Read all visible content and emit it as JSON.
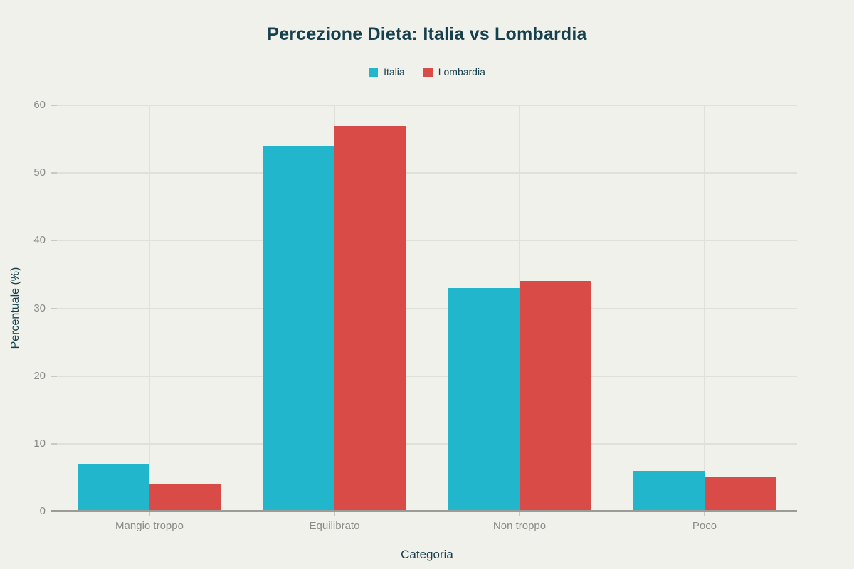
{
  "chart_data": {
    "type": "bar",
    "title": "Percezione Dieta: Italia vs Lombardia",
    "xlabel": "Categoria",
    "ylabel": "Percentuale (%)",
    "categories": [
      "Mangio troppo",
      "Equilibrato",
      "Non troppo",
      "Poco"
    ],
    "series": [
      {
        "name": "Italia",
        "color": "#21b6cc",
        "values": [
          7,
          54,
          33,
          6
        ]
      },
      {
        "name": "Lombardia",
        "color": "#d84b47",
        "values": [
          4,
          57,
          34,
          5
        ]
      }
    ],
    "ylim": [
      0,
      60
    ],
    "yticks": [
      0,
      10,
      20,
      30,
      40,
      50,
      60
    ],
    "grid": true,
    "legend_position": "top-center"
  },
  "colors": {
    "background": "#f1f1eb",
    "gridline": "#e0e0da",
    "axis_line": "#9b9b97",
    "tick_mark": "#c9c9c4",
    "tick_label": "#8a8a8a",
    "heading_text": "#17404e"
  }
}
